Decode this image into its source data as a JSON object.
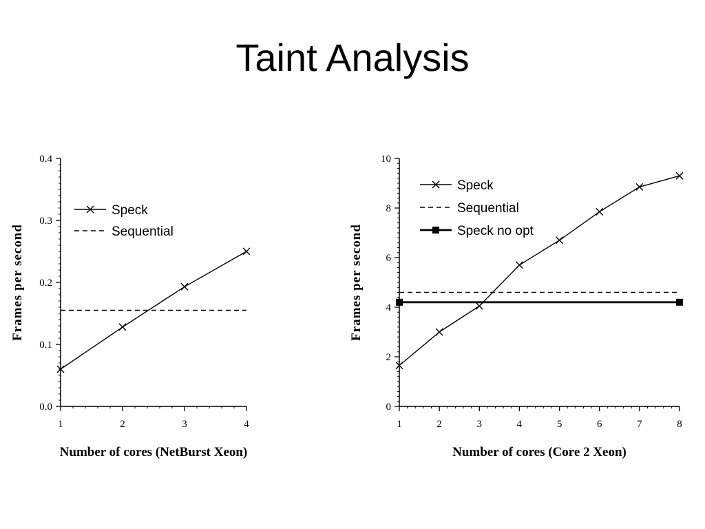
{
  "slide": {
    "title": "Taint Analysis"
  },
  "colors": {
    "ink": "#000000",
    "background": "#ffffff"
  },
  "chart_data": [
    {
      "type": "line",
      "xlabel": "Number of cores (NetBurst Xeon)",
      "ylabel": "Frames per second",
      "xlim": [
        1,
        4
      ],
      "ylim": [
        0.0,
        0.4
      ],
      "x_ticks": [
        1,
        2,
        3,
        4
      ],
      "y_ticks": [
        0.0,
        0.1,
        0.2,
        0.3,
        0.4
      ],
      "y_tick_labels": [
        "0.0",
        "0.1",
        "0.2",
        "0.3",
        "0.4"
      ],
      "x_tick_labels": [
        "1",
        "2",
        "3",
        "4"
      ],
      "legend_position": "top-left",
      "grid": false,
      "series": [
        {
          "name": "Speck",
          "style": "solid",
          "marker": "x",
          "x": [
            1,
            2,
            3,
            4
          ],
          "y": [
            0.06,
            0.128,
            0.193,
            0.25
          ]
        },
        {
          "name": "Sequential",
          "style": "dashed",
          "marker": "none",
          "x": [
            1,
            4
          ],
          "y": [
            0.155,
            0.155
          ]
        }
      ]
    },
    {
      "type": "line",
      "xlabel": "Number of cores (Core 2 Xeon)",
      "ylabel": "Frames per second",
      "xlim": [
        1,
        8
      ],
      "ylim": [
        0,
        10
      ],
      "x_ticks": [
        1,
        2,
        3,
        4,
        5,
        6,
        7,
        8
      ],
      "y_ticks": [
        0,
        2,
        4,
        6,
        8,
        10
      ],
      "y_tick_labels": [
        "0",
        "2",
        "4",
        "6",
        "8",
        "10"
      ],
      "x_tick_labels": [
        "1",
        "2",
        "3",
        "4",
        "5",
        "6",
        "7",
        "8"
      ],
      "legend_position": "top-left",
      "grid": false,
      "series": [
        {
          "name": "Speck",
          "style": "solid",
          "marker": "x",
          "x": [
            1,
            2,
            3,
            4,
            5,
            6,
            7,
            8
          ],
          "y": [
            1.65,
            3.0,
            4.05,
            5.7,
            6.7,
            7.85,
            8.85,
            9.3
          ]
        },
        {
          "name": "Sequential",
          "style": "dashed",
          "marker": "none",
          "x": [
            1,
            8
          ],
          "y": [
            4.6,
            4.6
          ]
        },
        {
          "name": "Speck no opt",
          "style": "bold",
          "marker": "square",
          "x": [
            1,
            8
          ],
          "y": [
            4.2,
            4.2
          ]
        }
      ]
    }
  ]
}
